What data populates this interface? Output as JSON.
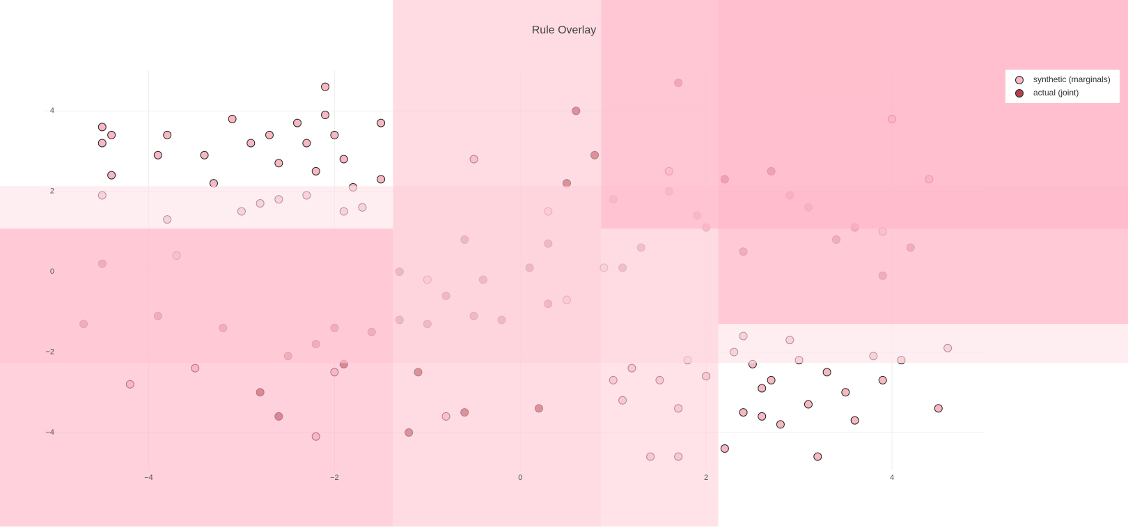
{
  "chart_data": {
    "type": "scatter",
    "title": "Rule Overlay",
    "xlim": [
      -5.6,
      6.54
    ],
    "ylim": [
      -6.34,
      6.76
    ],
    "xticks": [
      {
        "value": -4,
        "label": "−4"
      },
      {
        "value": -2,
        "label": "−2"
      },
      0,
      2,
      4
    ],
    "yticks": [
      {
        "value": -4,
        "label": "−4"
      },
      {
        "value": -2,
        "label": "−2"
      },
      0,
      2,
      4
    ],
    "grid": true,
    "legend": "top-right",
    "series": [
      {
        "name": "synthetic (marginals)",
        "color": "#f7b8c3",
        "x": [
          -4.5,
          -4.4,
          -4.5,
          -4.4,
          -4.5,
          -3.9,
          -3.8,
          -3.8,
          -3.4,
          -3.3,
          -3.1,
          -2.9,
          -2.7,
          -2.6,
          -2.4,
          -2.3,
          -2.2,
          -2.1,
          -2.1,
          -2.0,
          -1.9,
          -1.8,
          -1.7,
          -1.5,
          -1.5,
          -2.6,
          -3.0,
          -2.8,
          -2.3,
          -1.9,
          1.4,
          1.7,
          2.2,
          3.2,
          2.4,
          2.6,
          2.8,
          3.1,
          3.6,
          3.5,
          3.9,
          4.5,
          4.6,
          4.1,
          3.8,
          3.3,
          3.0,
          2.7,
          2.5,
          2.3,
          1.8,
          1.5,
          1.2,
          1.0,
          1.1,
          2.9,
          2.4,
          2.0,
          1.7,
          2.6,
          -0.5,
          0.3,
          -1.0,
          0.9,
          -3.5,
          -4.2,
          -2.0,
          3.9,
          4.0,
          -3.7,
          0.5,
          1.6,
          -0.8,
          4.4,
          -2.2
        ],
        "y": [
          3.6,
          3.4,
          3.2,
          2.4,
          1.9,
          2.9,
          3.4,
          1.3,
          2.9,
          2.2,
          3.8,
          3.2,
          3.4,
          2.7,
          3.7,
          3.2,
          2.5,
          4.6,
          3.9,
          3.4,
          2.8,
          2.1,
          1.6,
          3.7,
          2.3,
          1.8,
          1.5,
          1.7,
          1.9,
          1.5,
          -4.6,
          -4.6,
          -4.4,
          -4.6,
          -3.5,
          -3.6,
          -3.8,
          -3.3,
          -3.7,
          -3.0,
          -2.7,
          -3.4,
          -1.9,
          -2.2,
          -2.1,
          -2.5,
          -2.2,
          -2.7,
          -2.3,
          -2.0,
          -2.2,
          -2.7,
          -2.4,
          -2.7,
          -3.2,
          -1.7,
          -1.6,
          -2.6,
          -3.4,
          -2.9,
          2.8,
          1.5,
          -0.2,
          0.1,
          -2.4,
          -2.8,
          -2.5,
          1.0,
          3.8,
          0.4,
          -0.7,
          2.5,
          -3.6,
          2.3,
          -4.1
        ]
      },
      {
        "name": "actual (joint)",
        "color": "#b3424b",
        "x": [
          -2.5,
          -2.2,
          -1.9,
          -1.6,
          -1.3,
          -1.0,
          -0.8,
          -0.5,
          -1.1,
          -2.8,
          -3.2,
          -4.5,
          -3.9,
          -0.4,
          0.1,
          0.2,
          0.5,
          0.8,
          1.0,
          1.3,
          1.6,
          1.9,
          2.2,
          2.4,
          2.7,
          3.1,
          3.4,
          3.9,
          4.2,
          1.1,
          0.3,
          -1.2,
          -0.6,
          -2.6,
          -4.7,
          1.7,
          0.6,
          2.0,
          2.9,
          -0.2,
          -0.6,
          -1.3,
          0.3,
          -2.0,
          3.6
        ],
        "y": [
          -2.1,
          -1.8,
          -2.3,
          -1.5,
          -1.2,
          -1.3,
          -0.6,
          -1.1,
          -2.5,
          -3.0,
          -1.4,
          0.2,
          -1.1,
          -0.2,
          0.1,
          -3.4,
          2.2,
          2.9,
          1.8,
          0.6,
          2.0,
          1.4,
          2.3,
          0.5,
          2.5,
          1.6,
          0.8,
          -0.1,
          0.6,
          0.1,
          0.7,
          -4.0,
          -3.5,
          -3.6,
          -1.3,
          4.7,
          4.0,
          1.1,
          1.9,
          -1.2,
          0.8,
          0.0,
          -0.8,
          -1.4,
          1.1
        ]
      }
    ],
    "regions": [
      {
        "x": [
          -5.6,
          6.54
        ],
        "y": [
          -2.27,
          2.13
        ],
        "color": "#ffe3e8"
      },
      {
        "x": [
          -1.37,
          0.87
        ],
        "y": [
          -6.34,
          6.76
        ],
        "color": "#ffc4d0"
      },
      {
        "x": [
          0.87,
          2.13
        ],
        "y": [
          -6.34,
          6.76
        ],
        "color": "#ffd0da"
      },
      {
        "x": [
          0.87,
          6.54
        ],
        "y": [
          1.07,
          6.76
        ],
        "color": "#ffb3c4"
      },
      {
        "x": [
          2.13,
          6.54
        ],
        "y": [
          -1.3,
          6.76
        ],
        "color": "#ffb3c4"
      },
      {
        "x": [
          -5.6,
          -1.37
        ],
        "y": [
          -6.34,
          1.07
        ],
        "color": "#ffb3c4"
      }
    ]
  }
}
